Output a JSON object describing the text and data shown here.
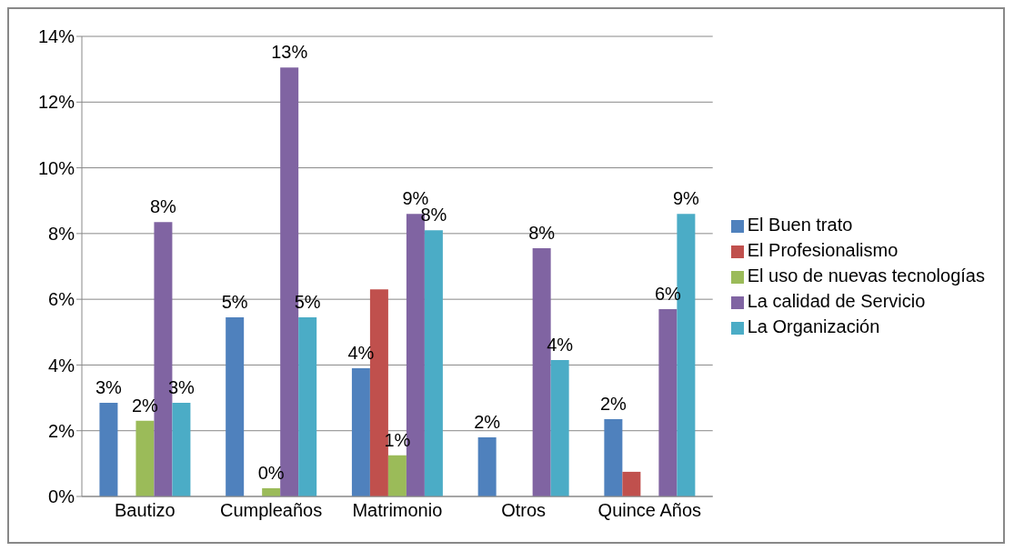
{
  "chart_data": {
    "type": "bar",
    "categories": [
      "Bautizo",
      "Cumpleaños",
      "Matrimonio",
      "Otros",
      "Quince Años"
    ],
    "series": [
      {
        "name": "El Buen trato",
        "color": "#4f81bd",
        "values": [
          2.85,
          5.45,
          3.9,
          1.8,
          2.35
        ],
        "value_labels": [
          "3%",
          "5%",
          "4%",
          "2%",
          "2%"
        ]
      },
      {
        "name": "El Profesionalismo",
        "color": "#c0504d",
        "values": [
          null,
          null,
          6.3,
          null,
          0.75
        ],
        "value_labels": [
          null,
          null,
          null,
          null,
          null
        ]
      },
      {
        "name": "El uso de nuevas tecnologías",
        "color": "#9bbb59",
        "values": [
          2.3,
          0.25,
          1.25,
          null,
          null
        ],
        "value_labels": [
          "2%",
          "0%",
          "1%",
          null,
          null
        ]
      },
      {
        "name": "La calidad de Servicio",
        "color": "#8064a2",
        "values": [
          8.35,
          13.05,
          8.6,
          7.55,
          5.7
        ],
        "value_labels": [
          "8%",
          "13%",
          "9%",
          "8%",
          "6%"
        ]
      },
      {
        "name": "La Organización",
        "color": "#4bacc6",
        "values": [
          2.85,
          5.45,
          8.1,
          4.15,
          8.6
        ],
        "value_labels": [
          "3%",
          "5%",
          "8%",
          "4%",
          "9%"
        ]
      }
    ],
    "ylim": [
      0,
      14
    ],
    "yticks": [
      {
        "value": 0,
        "label": "0%"
      },
      {
        "value": 2,
        "label": "2%"
      },
      {
        "value": 4,
        "label": "4%"
      },
      {
        "value": 6,
        "label": "6%"
      },
      {
        "value": 8,
        "label": "8%"
      },
      {
        "value": 10,
        "label": "10%"
      },
      {
        "value": 12,
        "label": "12%"
      },
      {
        "value": 14,
        "label": "14%"
      }
    ],
    "grid": "y",
    "legend": "right"
  }
}
